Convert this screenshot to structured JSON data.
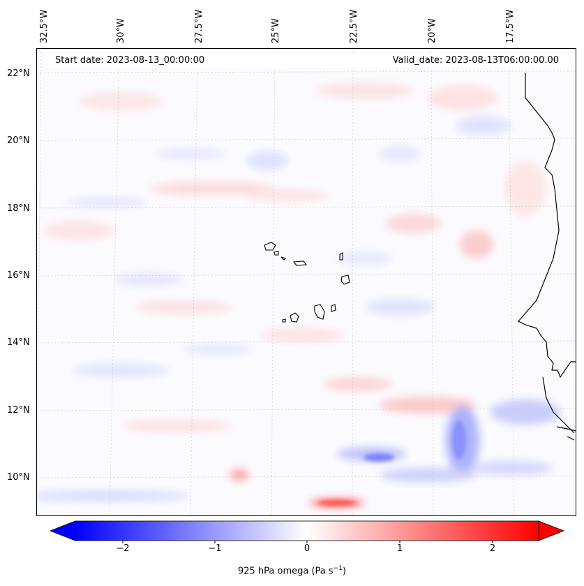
{
  "header": {
    "start_date": "Start date: 2023-08-13_00:00:00",
    "valid_date": "Valid_date: 2023-08-13T06:00:00.00"
  },
  "lon_labels": [
    "32.5°W",
    "30°W",
    "27.5°W",
    "25°W",
    "22.5°W",
    "20°W",
    "17.5°W"
  ],
  "lat_labels": [
    "22°N",
    "20°N",
    "18°N",
    "16°N",
    "14°N",
    "12°N",
    "10°N"
  ],
  "colorbar": {
    "label": "925 hPa omega (Pa s",
    "label_sup": "−1",
    "label_tail": ")",
    "ticks": [
      "−2",
      "−1",
      "0",
      "1",
      "2"
    ],
    "range": [
      -2.6,
      2.6
    ],
    "colors": {
      "negative": "#0000ff",
      "zero": "#ffffff",
      "positive": "#ff0000"
    }
  },
  "map": {
    "extent": {
      "lon": [
        -32.5,
        -16.1
      ],
      "lat": [
        8.9,
        22.8
      ]
    },
    "field": "925 hPa omega",
    "gridlines": true
  }
}
